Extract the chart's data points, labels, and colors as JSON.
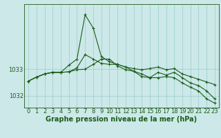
{
  "title": "Graphe pression niveau de la mer (hPa)",
  "bg_color": "#cce8e8",
  "grid_color": "#99cccc",
  "line_color": "#1a5c1a",
  "x_labels": [
    "0",
    "1",
    "2",
    "3",
    "4",
    "5",
    "6",
    "7",
    "8",
    "9",
    "10",
    "11",
    "12",
    "13",
    "14",
    "15",
    "16",
    "17",
    "18",
    "19",
    "20",
    "21",
    "22",
    "23"
  ],
  "series1": [
    1032.55,
    1032.7,
    1032.82,
    1032.88,
    1032.88,
    1032.9,
    1033.05,
    1033.55,
    1033.38,
    1033.22,
    1033.18,
    1033.18,
    1033.08,
    1033.02,
    1032.98,
    1033.02,
    1033.08,
    1032.98,
    1033.02,
    1032.82,
    1032.72,
    1032.62,
    1032.52,
    1032.42
  ],
  "series2": [
    1032.55,
    1032.7,
    1032.82,
    1032.88,
    1032.88,
    1033.15,
    1033.38,
    1035.05,
    1034.55,
    1033.48,
    1033.28,
    1033.18,
    1033.08,
    1032.92,
    1032.82,
    1032.68,
    1032.68,
    1032.72,
    1032.68,
    1032.48,
    1032.32,
    1032.18,
    1031.88,
    1031.72
  ],
  "series3": [
    1032.55,
    1032.7,
    1032.82,
    1032.88,
    1032.88,
    1032.9,
    1032.98,
    1033.0,
    1033.18,
    1033.38,
    1033.38,
    1033.12,
    1032.98,
    1032.92,
    1032.72,
    1032.68,
    1032.88,
    1032.78,
    1032.88,
    1032.68,
    1032.48,
    1032.38,
    1032.18,
    1031.88
  ],
  "ytick_vals": [
    1032,
    1033
  ],
  "ytick_labels": [
    "1032",
    "1033"
  ],
  "ylim": [
    1031.55,
    1035.45
  ],
  "xlim": [
    -0.5,
    23.5
  ],
  "title_fontsize": 7.0,
  "tick_fontsize": 6.0
}
